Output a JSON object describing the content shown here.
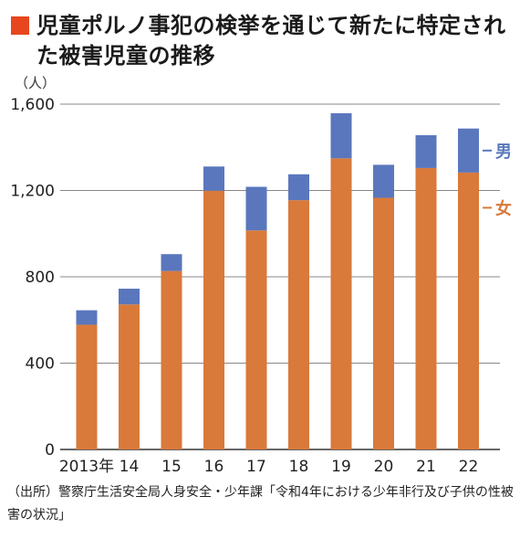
{
  "title": "児童ポルノ事犯の検挙を通じて新たに特定された被害児童の推移",
  "unit_label": "（人）",
  "source": "（出所）警察庁生活安全局人身安全・少年課「令和4年における少年非行及び子供の性被害の状況」",
  "colors": {
    "female": "#d9793a",
    "male": "#5a77bd",
    "title_marker": "#e8461e"
  },
  "chart_data": {
    "type": "bar",
    "stacked": true,
    "categories": [
      "2013年",
      "14",
      "15",
      "16",
      "17",
      "18",
      "19",
      "20",
      "21",
      "22"
    ],
    "series": [
      {
        "name": "女",
        "values": [
          578,
          672,
          827,
          1199,
          1015,
          1155,
          1349,
          1166,
          1304,
          1283
        ]
      },
      {
        "name": "男",
        "values": [
          67,
          73,
          78,
          112,
          202,
          120,
          209,
          153,
          152,
          204
        ]
      }
    ],
    "ylim": [
      0,
      1600
    ],
    "yticks": [
      "0",
      "400",
      "800",
      "1,200",
      "1,600"
    ],
    "ytick_values": [
      0,
      400,
      800,
      1200,
      1600
    ],
    "grid": true,
    "legend_placement": "right, beside last bar",
    "xlabel": "",
    "ylabel": ""
  }
}
